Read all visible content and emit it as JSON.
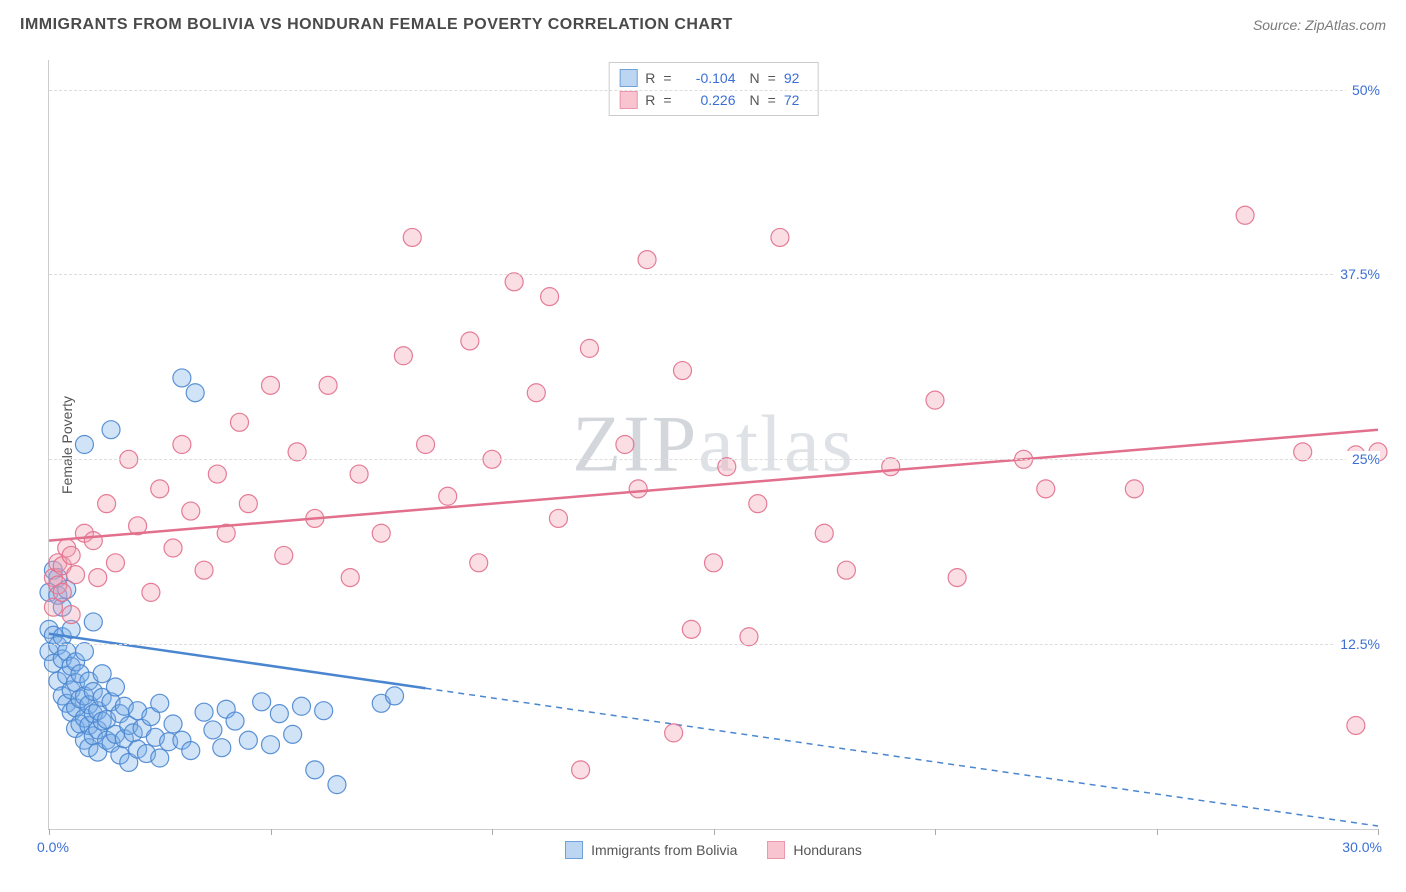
{
  "title": "IMMIGRANTS FROM BOLIVIA VS HONDURAN FEMALE POVERTY CORRELATION CHART",
  "source_label": "Source: ZipAtlas.com",
  "watermark_a": "ZIP",
  "watermark_b": "atlas",
  "y_axis_title": "Female Poverty",
  "chart": {
    "type": "scatter",
    "background_color": "#ffffff",
    "grid_color": "#dddddd",
    "axis_color": "#cccccc",
    "tick_label_color": "#3b6fd6",
    "label_fontsize": 14,
    "title_fontsize": 16,
    "xlim": [
      0,
      30
    ],
    "ylim": [
      0,
      52
    ],
    "x_ticks": [
      0,
      5,
      10,
      15,
      20,
      25,
      30
    ],
    "y_ticks": [
      12.5,
      25.0,
      37.5,
      50.0
    ],
    "x_tick_labels": {
      "0": "0.0%",
      "30": "30.0%"
    },
    "marker_radius": 9,
    "marker_fill_opacity": 0.35,
    "marker_stroke_opacity": 0.9,
    "trend_line_width": 2.5,
    "series": [
      {
        "id": "bolivia",
        "label": "Immigrants from Bolivia",
        "fill_color": "#7ab0e8",
        "stroke_color": "#4a86d0",
        "swatch_fill": "#bcd6f2",
        "swatch_border": "#6fa2da",
        "r": "-0.104",
        "n": "92",
        "trend": {
          "x1": 0,
          "y1": 13.2,
          "x2": 30,
          "y2": 0.2,
          "solid_until_x": 8.5
        },
        "points": [
          [
            0.0,
            12.0
          ],
          [
            0.0,
            13.5
          ],
          [
            0.0,
            16.0
          ],
          [
            0.1,
            11.2
          ],
          [
            0.1,
            17.5
          ],
          [
            0.1,
            13.1
          ],
          [
            0.2,
            10.0
          ],
          [
            0.2,
            15.8
          ],
          [
            0.2,
            12.4
          ],
          [
            0.2,
            17.0
          ],
          [
            0.3,
            9.0
          ],
          [
            0.3,
            11.5
          ],
          [
            0.3,
            13.0
          ],
          [
            0.3,
            15.0
          ],
          [
            0.4,
            8.5
          ],
          [
            0.4,
            10.4
          ],
          [
            0.4,
            12.0
          ],
          [
            0.4,
            16.2
          ],
          [
            0.5,
            7.9
          ],
          [
            0.5,
            9.4
          ],
          [
            0.5,
            11.0
          ],
          [
            0.5,
            13.5
          ],
          [
            0.6,
            6.8
          ],
          [
            0.6,
            8.2
          ],
          [
            0.6,
            9.9
          ],
          [
            0.6,
            11.3
          ],
          [
            0.7,
            7.1
          ],
          [
            0.7,
            8.8
          ],
          [
            0.7,
            10.5
          ],
          [
            0.8,
            6.0
          ],
          [
            0.8,
            7.5
          ],
          [
            0.8,
            9.0
          ],
          [
            0.8,
            12.0
          ],
          [
            0.8,
            26.0
          ],
          [
            0.9,
            5.5
          ],
          [
            0.9,
            7.0
          ],
          [
            0.9,
            8.4
          ],
          [
            0.9,
            10.0
          ],
          [
            1.0,
            6.3
          ],
          [
            1.0,
            7.8
          ],
          [
            1.0,
            9.3
          ],
          [
            1.0,
            14.0
          ],
          [
            1.1,
            5.2
          ],
          [
            1.1,
            6.7
          ],
          [
            1.1,
            8.0
          ],
          [
            1.2,
            7.3
          ],
          [
            1.2,
            8.9
          ],
          [
            1.2,
            10.5
          ],
          [
            1.3,
            6.0
          ],
          [
            1.3,
            7.4
          ],
          [
            1.4,
            5.8
          ],
          [
            1.4,
            8.6
          ],
          [
            1.4,
            27.0
          ],
          [
            1.5,
            6.4
          ],
          [
            1.5,
            9.6
          ],
          [
            1.6,
            5.0
          ],
          [
            1.6,
            7.8
          ],
          [
            1.7,
            6.1
          ],
          [
            1.7,
            8.3
          ],
          [
            1.8,
            4.5
          ],
          [
            1.8,
            7.0
          ],
          [
            1.9,
            6.5
          ],
          [
            2.0,
            5.4
          ],
          [
            2.0,
            8.0
          ],
          [
            2.1,
            6.8
          ],
          [
            2.2,
            5.1
          ],
          [
            2.3,
            7.6
          ],
          [
            2.4,
            6.2
          ],
          [
            2.5,
            4.8
          ],
          [
            2.5,
            8.5
          ],
          [
            2.7,
            5.9
          ],
          [
            2.8,
            7.1
          ],
          [
            3.0,
            6.0
          ],
          [
            3.0,
            30.5
          ],
          [
            3.2,
            5.3
          ],
          [
            3.3,
            29.5
          ],
          [
            3.5,
            7.9
          ],
          [
            3.7,
            6.7
          ],
          [
            3.9,
            5.5
          ],
          [
            4.0,
            8.1
          ],
          [
            4.2,
            7.3
          ],
          [
            4.5,
            6.0
          ],
          [
            4.8,
            8.6
          ],
          [
            5.0,
            5.7
          ],
          [
            5.2,
            7.8
          ],
          [
            5.5,
            6.4
          ],
          [
            5.7,
            8.3
          ],
          [
            6.0,
            4.0
          ],
          [
            6.2,
            8.0
          ],
          [
            6.5,
            3.0
          ],
          [
            7.5,
            8.5
          ],
          [
            7.8,
            9.0
          ]
        ]
      },
      {
        "id": "honduras",
        "label": "Hondurans",
        "fill_color": "#f2a0b3",
        "stroke_color": "#e26f8c",
        "swatch_fill": "#f8c4d0",
        "swatch_border": "#eb97ad",
        "r": "0.226",
        "n": "72",
        "trend": {
          "x1": 0,
          "y1": 19.5,
          "x2": 30,
          "y2": 27.0,
          "solid_until_x": 30
        },
        "points": [
          [
            0.1,
            15.0
          ],
          [
            0.1,
            17.0
          ],
          [
            0.2,
            16.5
          ],
          [
            0.2,
            18.0
          ],
          [
            0.3,
            16.0
          ],
          [
            0.3,
            17.8
          ],
          [
            0.4,
            19.0
          ],
          [
            0.5,
            14.5
          ],
          [
            0.5,
            18.5
          ],
          [
            0.6,
            17.2
          ],
          [
            0.8,
            20.0
          ],
          [
            1.0,
            19.5
          ],
          [
            1.1,
            17.0
          ],
          [
            1.3,
            22.0
          ],
          [
            1.5,
            18.0
          ],
          [
            1.8,
            25.0
          ],
          [
            2.0,
            20.5
          ],
          [
            2.3,
            16.0
          ],
          [
            2.5,
            23.0
          ],
          [
            2.8,
            19.0
          ],
          [
            3.0,
            26.0
          ],
          [
            3.2,
            21.5
          ],
          [
            3.5,
            17.5
          ],
          [
            3.8,
            24.0
          ],
          [
            4.0,
            20.0
          ],
          [
            4.3,
            27.5
          ],
          [
            4.5,
            22.0
          ],
          [
            5.0,
            30.0
          ],
          [
            5.3,
            18.5
          ],
          [
            5.6,
            25.5
          ],
          [
            6.0,
            21.0
          ],
          [
            6.3,
            30.0
          ],
          [
            6.8,
            17.0
          ],
          [
            7.0,
            24.0
          ],
          [
            7.5,
            20.0
          ],
          [
            8.0,
            32.0
          ],
          [
            8.2,
            40.0
          ],
          [
            8.5,
            26.0
          ],
          [
            9.0,
            22.5
          ],
          [
            9.5,
            33.0
          ],
          [
            9.7,
            18.0
          ],
          [
            10.0,
            25.0
          ],
          [
            10.5,
            37.0
          ],
          [
            11.0,
            29.5
          ],
          [
            11.3,
            36.0
          ],
          [
            11.5,
            21.0
          ],
          [
            12.0,
            4.0
          ],
          [
            12.2,
            32.5
          ],
          [
            13.0,
            26.0
          ],
          [
            13.3,
            23.0
          ],
          [
            13.5,
            38.5
          ],
          [
            14.1,
            6.5
          ],
          [
            14.3,
            31.0
          ],
          [
            14.5,
            13.5
          ],
          [
            15.0,
            18.0
          ],
          [
            15.3,
            24.5
          ],
          [
            15.8,
            13.0
          ],
          [
            16.0,
            22.0
          ],
          [
            16.5,
            40.0
          ],
          [
            17.5,
            20.0
          ],
          [
            18.0,
            17.5
          ],
          [
            19.0,
            24.5
          ],
          [
            20.0,
            29.0
          ],
          [
            20.5,
            17.0
          ],
          [
            22.0,
            25.0
          ],
          [
            22.5,
            23.0
          ],
          [
            24.5,
            23.0
          ],
          [
            27.0,
            41.5
          ],
          [
            28.3,
            25.5
          ],
          [
            29.5,
            7.0
          ],
          [
            29.5,
            25.3
          ],
          [
            30.0,
            25.5
          ]
        ]
      }
    ]
  },
  "stats_legend": {
    "r_label": "R",
    "n_label": "N",
    "eq": "="
  },
  "y_tick_labels": {
    "12.5": "12.5%",
    "25.0": "25.0%",
    "37.5": "37.5%",
    "50.0": "50.0%"
  }
}
